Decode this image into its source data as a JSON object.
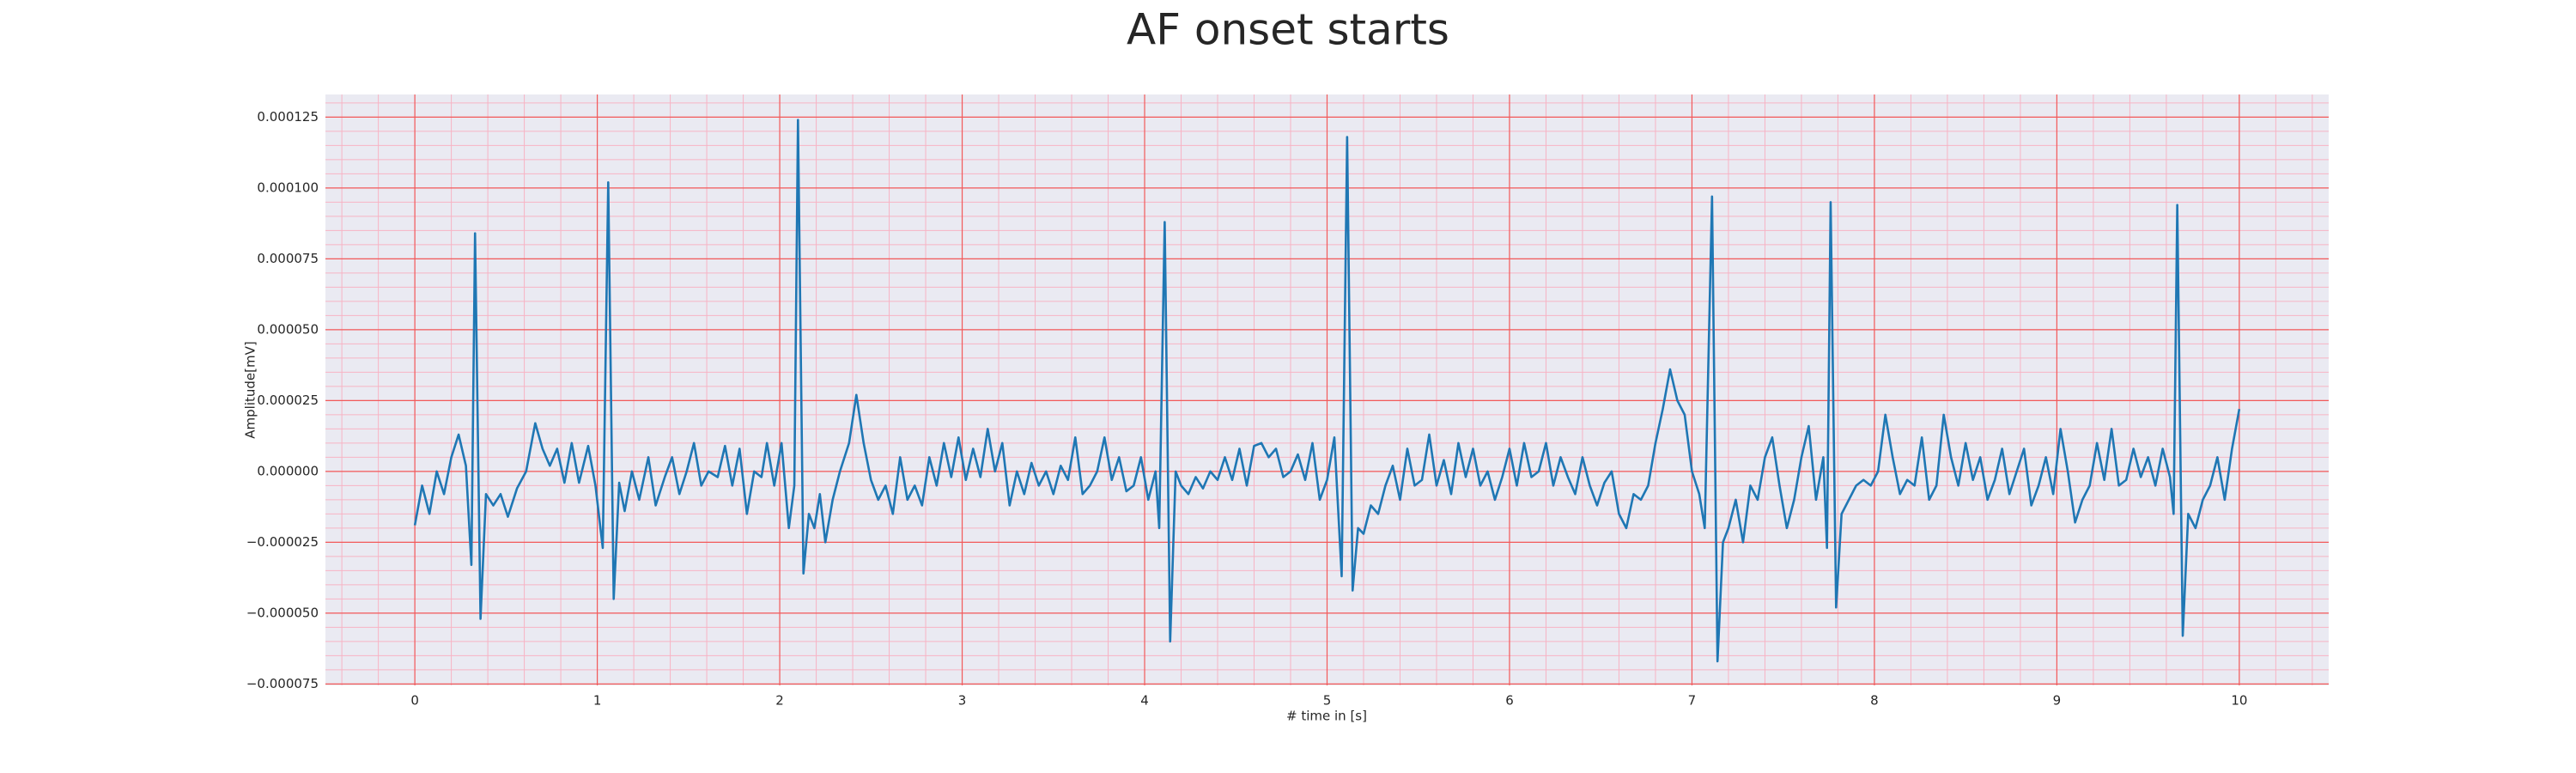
{
  "chart_data": {
    "type": "line",
    "title": "AF onset starts",
    "xlabel": "# time in [s]",
    "ylabel": "Amplitude[mV]",
    "xlim": [
      -0.49,
      10.49
    ],
    "ylim": [
      -7.55e-05,
      0.000133
    ],
    "xticks": [
      0,
      1,
      2,
      3,
      4,
      5,
      6,
      7,
      8,
      9,
      10
    ],
    "yticks": [
      {
        "value": 0.000125,
        "label": "0.000125"
      },
      {
        "value": 0.0001,
        "label": "0.000100"
      },
      {
        "value": 7.5e-05,
        "label": "0.000075"
      },
      {
        "value": 5e-05,
        "label": "0.000050"
      },
      {
        "value": 2.5e-05,
        "label": "0.000025"
      },
      {
        "value": 0,
        "label": "0.000000"
      },
      {
        "value": -2.5e-05,
        "label": "−0.000025"
      },
      {
        "value": -5e-05,
        "label": "−0.000050"
      },
      {
        "value": -7.5e-05,
        "label": "−0.000075"
      }
    ],
    "grid": true,
    "grid_color": "#f25a5a",
    "minor_grid_color": "#f7b3c4",
    "minor_grid_divisions": 5,
    "background": "#eaeaf2",
    "series": [
      {
        "color": "#1f77b4",
        "x": [
          0,
          0.04,
          0.08,
          0.12,
          0.16,
          0.2,
          0.24,
          0.28,
          0.31,
          0.33,
          0.36,
          0.39,
          0.43,
          0.47,
          0.51,
          0.56,
          0.61,
          0.66,
          0.7,
          0.74,
          0.78,
          0.82,
          0.86,
          0.9,
          0.95,
          0.99,
          1.03,
          1.06,
          1.09,
          1.12,
          1.15,
          1.19,
          1.23,
          1.28,
          1.32,
          1.37,
          1.41,
          1.45,
          1.49,
          1.53,
          1.57,
          1.61,
          1.66,
          1.7,
          1.74,
          1.78,
          1.82,
          1.86,
          1.9,
          1.93,
          1.97,
          2.01,
          2.05,
          2.08,
          2.1,
          2.13,
          2.16,
          2.19,
          2.22,
          2.25,
          2.29,
          2.33,
          2.38,
          2.42,
          2.46,
          2.5,
          2.54,
          2.58,
          2.62,
          2.66,
          2.7,
          2.74,
          2.78,
          2.82,
          2.86,
          2.9,
          2.94,
          2.98,
          3.02,
          3.06,
          3.1,
          3.14,
          3.18,
          3.22,
          3.26,
          3.3,
          3.34,
          3.38,
          3.42,
          3.46,
          3.5,
          3.54,
          3.58,
          3.62,
          3.66,
          3.7,
          3.74,
          3.78,
          3.82,
          3.86,
          3.9,
          3.94,
          3.98,
          4.02,
          4.06,
          4.08,
          4.11,
          4.14,
          4.17,
          4.2,
          4.24,
          4.28,
          4.32,
          4.36,
          4.4,
          4.44,
          4.48,
          4.52,
          4.56,
          4.6,
          4.64,
          4.68,
          4.72,
          4.76,
          4.8,
          4.84,
          4.88,
          4.92,
          4.96,
          5,
          5.04,
          5.08,
          5.11,
          5.14,
          5.17,
          5.2,
          5.24,
          5.28,
          5.32,
          5.36,
          5.4,
          5.44,
          5.48,
          5.52,
          5.56,
          5.6,
          5.64,
          5.68,
          5.72,
          5.76,
          5.8,
          5.84,
          5.88,
          5.92,
          5.96,
          6,
          6.04,
          6.08,
          6.12,
          6.16,
          6.2,
          6.24,
          6.28,
          6.32,
          6.36,
          6.4,
          6.44,
          6.48,
          6.52,
          6.56,
          6.6,
          6.64,
          6.68,
          6.72,
          6.76,
          6.8,
          6.84,
          6.88,
          6.92,
          6.96,
          7,
          7.04,
          7.07,
          7.11,
          7.14,
          7.17,
          7.2,
          7.24,
          7.28,
          7.32,
          7.36,
          7.4,
          7.44,
          7.48,
          7.52,
          7.56,
          7.6,
          7.64,
          7.68,
          7.72,
          7.74,
          7.76,
          7.79,
          7.82,
          7.86,
          7.9,
          7.94,
          7.98,
          8.02,
          8.06,
          8.1,
          8.14,
          8.18,
          8.22,
          8.26,
          8.3,
          8.34,
          8.38,
          8.42,
          8.46,
          8.5,
          8.54,
          8.58,
          8.62,
          8.66,
          8.7,
          8.74,
          8.78,
          8.82,
          8.86,
          8.9,
          8.94,
          8.98,
          9.02,
          9.06,
          9.1,
          9.14,
          9.18,
          9.22,
          9.26,
          9.3,
          9.34,
          9.38,
          9.42,
          9.46,
          9.5,
          9.54,
          9.58,
          9.62,
          9.64,
          9.66,
          9.69,
          9.72,
          9.76,
          9.8,
          9.84,
          9.88,
          9.92,
          9.96,
          10
        ],
        "values": [
          -1.9e-05,
          -5e-06,
          -1.5e-05,
          0,
          -8e-06,
          5e-06,
          1.3e-05,
          2e-06,
          -3.3e-05,
          8.4e-05,
          -5.2e-05,
          -8e-06,
          -1.2e-05,
          -8e-06,
          -1.6e-05,
          -6e-06,
          0,
          1.7e-05,
          8e-06,
          2e-06,
          8e-06,
          -4e-06,
          1e-05,
          -4e-06,
          9e-06,
          -5e-06,
          -2.7e-05,
          0.000102,
          -4.5e-05,
          -4e-06,
          -1.4e-05,
          0,
          -1e-05,
          5e-06,
          -1.2e-05,
          -2e-06,
          5e-06,
          -8e-06,
          0,
          1e-05,
          -5e-06,
          0,
          -2e-06,
          9e-06,
          -5e-06,
          8e-06,
          -1.5e-05,
          0,
          -2e-06,
          1e-05,
          -5e-06,
          1e-05,
          -2e-05,
          -5e-06,
          0.000124,
          -3.6e-05,
          -1.5e-05,
          -2e-05,
          -8e-06,
          -2.5e-05,
          -1e-05,
          0,
          1e-05,
          2.7e-05,
          1e-05,
          -3e-06,
          -1e-05,
          -5e-06,
          -1.5e-05,
          5e-06,
          -1e-05,
          -5e-06,
          -1.2e-05,
          5e-06,
          -5e-06,
          1e-05,
          -2e-06,
          1.2e-05,
          -3e-06,
          8e-06,
          -2e-06,
          1.5e-05,
          0,
          1e-05,
          -1.2e-05,
          0,
          -8e-06,
          3e-06,
          -5e-06,
          0,
          -8e-06,
          2e-06,
          -3e-06,
          1.2e-05,
          -8e-06,
          -5e-06,
          0,
          1.2e-05,
          -3e-06,
          5e-06,
          -7e-06,
          -5e-06,
          5e-06,
          -1e-05,
          0,
          -2e-05,
          8.8e-05,
          -6e-05,
          0,
          -5e-06,
          -8e-06,
          -2e-06,
          -6e-06,
          0,
          -3e-06,
          5e-06,
          -3e-06,
          8e-06,
          -5e-06,
          9e-06,
          1e-05,
          5e-06,
          8e-06,
          -2e-06,
          0,
          6e-06,
          -3e-06,
          1e-05,
          -1e-05,
          -3e-06,
          1.2e-05,
          -3.7e-05,
          0.000118,
          -4.2e-05,
          -2e-05,
          -2.2e-05,
          -1.2e-05,
          -1.5e-05,
          -5e-06,
          2e-06,
          -1e-05,
          8e-06,
          -5e-06,
          -3e-06,
          1.3e-05,
          -5e-06,
          4e-06,
          -8e-06,
          1e-05,
          -2e-06,
          8e-06,
          -5e-06,
          0,
          -1e-05,
          -2e-06,
          8e-06,
          -5e-06,
          1e-05,
          -2e-06,
          0,
          1e-05,
          -5e-06,
          5e-06,
          -2e-06,
          -8e-06,
          5e-06,
          -5e-06,
          -1.2e-05,
          -4e-06,
          0,
          -1.5e-05,
          -2e-05,
          -8e-06,
          -1e-05,
          -5e-06,
          1e-05,
          2.2e-05,
          3.6e-05,
          2.5e-05,
          2e-05,
          0,
          -8e-06,
          -2e-05,
          9.7e-05,
          -6.7e-05,
          -2.5e-05,
          -2e-05,
          -1e-05,
          -2.5e-05,
          -5e-06,
          -1e-05,
          5e-06,
          1.2e-05,
          -5e-06,
          -2e-05,
          -1e-05,
          5e-06,
          1.6e-05,
          -1e-05,
          5e-06,
          -2.7e-05,
          9.5e-05,
          -4.8e-05,
          -1.5e-05,
          -1e-05,
          -5e-06,
          -3e-06,
          -5e-06,
          0,
          2e-05,
          5e-06,
          -8e-06,
          -3e-06,
          -5e-06,
          1.2e-05,
          -1e-05,
          -5e-06,
          2e-05,
          5e-06,
          -5e-06,
          1e-05,
          -3e-06,
          5e-06,
          -1e-05,
          -3e-06,
          8e-06,
          -8e-06,
          0,
          8e-06,
          -1.2e-05,
          -5e-06,
          5e-06,
          -8e-06,
          1.5e-05,
          0,
          -1.8e-05,
          -1e-05,
          -5e-06,
          1e-05,
          -3e-06,
          1.5e-05,
          -5e-06,
          -3e-06,
          8e-06,
          -2e-06,
          5e-06,
          -5e-06,
          8e-06,
          -2e-06,
          -1.5e-05,
          9.4e-05,
          -5.8e-05,
          -1.5e-05,
          -2e-05,
          -1e-05,
          -5e-06,
          5e-06,
          -1e-05,
          8e-06,
          2.2e-05
        ]
      }
    ]
  }
}
